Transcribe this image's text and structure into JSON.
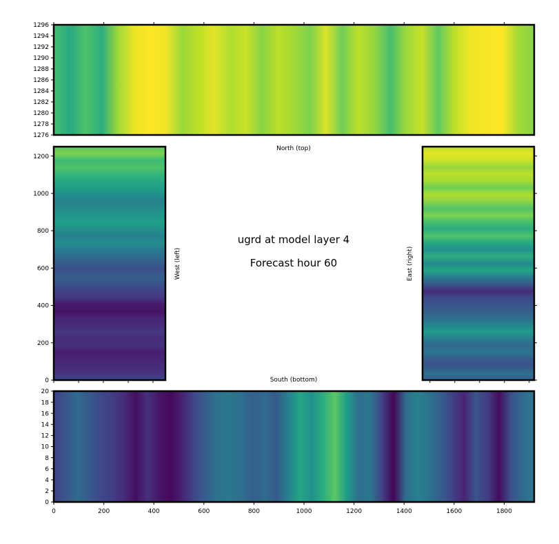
{
  "chart_data": [
    {
      "type": "heatmap",
      "panel": "north",
      "label": "North (top)",
      "x_ticks": [
        0,
        200,
        400,
        600,
        800,
        1000,
        1200,
        1400,
        1600,
        1800
      ],
      "x_tick_labels": [
        "",
        "",
        "",
        "",
        "",
        "",
        "",
        "",
        "",
        ""
      ],
      "xlim": [
        0,
        1920
      ],
      "y_ticks": [
        1276,
        1278,
        1280,
        1282,
        1284,
        1286,
        1288,
        1290,
        1292,
        1294,
        1296
      ],
      "y_tick_labels": [
        "1276",
        "1278",
        "1280",
        "1282",
        "1284",
        "1286",
        "1288",
        "1290",
        "1292",
        "1294",
        "1296"
      ],
      "ylim": [
        1276,
        1296
      ],
      "columns": [
        0.7,
        0.6,
        0.72,
        0.62,
        0.85,
        0.97,
        1.0,
        0.98,
        0.85,
        0.9,
        0.96,
        0.88,
        0.92,
        0.82,
        0.9,
        0.86,
        0.8,
        0.95,
        0.78,
        0.9,
        0.84,
        0.7,
        0.85,
        0.92,
        0.75,
        0.9,
        0.98,
        0.99,
        1.0,
        0.86,
        0.82
      ],
      "colormap": "viridis"
    },
    {
      "type": "heatmap",
      "panel": "west",
      "label": "West (left)",
      "x_ticks": [
        0,
        100,
        200,
        300,
        400
      ],
      "x_tick_labels": [
        "",
        "",
        "",
        "",
        ""
      ],
      "xlim": [
        0,
        450
      ],
      "y_ticks": [
        0,
        200,
        400,
        600,
        800,
        1000,
        1200
      ],
      "y_tick_labels": [
        "0",
        "200",
        "400",
        "600",
        "800",
        "1000",
        "1200"
      ],
      "ylim": [
        0,
        1250
      ],
      "rows": [
        0.22,
        0.14,
        0.12,
        0.1,
        0.08,
        0.14,
        0.12,
        0.16,
        0.12,
        0.1,
        0.05,
        0.07,
        0.16,
        0.2,
        0.26,
        0.3,
        0.24,
        0.28,
        0.36,
        0.42,
        0.48,
        0.44,
        0.5,
        0.56,
        0.52,
        0.48,
        0.44,
        0.5,
        0.56,
        0.6,
        0.66,
        0.72,
        0.68,
        0.8,
        0.74
      ],
      "colormap": "viridis"
    },
    {
      "type": "heatmap",
      "panel": "east",
      "label": "East (right)",
      "x_ticks": [
        1500,
        1600,
        1700,
        1800,
        1900
      ],
      "x_tick_labels": [
        "",
        "",
        "",
        "",
        ""
      ],
      "xlim": [
        1470,
        1920
      ],
      "y_ticks": [
        0,
        200,
        400,
        600,
        800,
        1000,
        1200
      ],
      "y_tick_labels": [
        "",
        "",
        "",
        "",
        "",
        "",
        ""
      ],
      "ylim": [
        0,
        1250
      ],
      "rows": [
        0.3,
        0.36,
        0.26,
        0.28,
        0.38,
        0.34,
        0.42,
        0.54,
        0.46,
        0.36,
        0.3,
        0.26,
        0.22,
        0.12,
        0.28,
        0.42,
        0.58,
        0.48,
        0.62,
        0.5,
        0.6,
        0.72,
        0.62,
        0.7,
        0.8,
        0.72,
        0.82,
        0.88,
        0.78,
        0.86,
        0.9,
        0.84,
        0.92,
        0.96,
        0.9
      ],
      "colormap": "viridis"
    },
    {
      "type": "heatmap",
      "panel": "south",
      "label": "South (bottom)",
      "x_ticks": [
        0,
        200,
        400,
        600,
        800,
        1000,
        1200,
        1400,
        1600,
        1800
      ],
      "x_tick_labels": [
        "0",
        "200",
        "400",
        "600",
        "800",
        "1000",
        "1200",
        "1400",
        "1600",
        "1800"
      ],
      "xlim": [
        0,
        1920
      ],
      "y_ticks": [
        0,
        2,
        4,
        6,
        8,
        10,
        12,
        14,
        16,
        18,
        20
      ],
      "y_tick_labels": [
        "0",
        "2",
        "4",
        "6",
        "8",
        "10",
        "12",
        "14",
        "16",
        "18",
        "20"
      ],
      "ylim": [
        0,
        20
      ],
      "columns": [
        0.2,
        0.26,
        0.34,
        0.28,
        0.22,
        0.18,
        0.12,
        0.04,
        0.14,
        0.06,
        0.02,
        0.1,
        0.22,
        0.3,
        0.38,
        0.4,
        0.36,
        0.3,
        0.34,
        0.28,
        0.44,
        0.58,
        0.5,
        0.62,
        0.74,
        0.55,
        0.36,
        0.4,
        0.2,
        0.01,
        0.34,
        0.44,
        0.38,
        0.3,
        0.2,
        0.1,
        0.26,
        0.18,
        0.03,
        0.24,
        0.34,
        0.4
      ],
      "colormap": "viridis"
    }
  ],
  "title_line1": "ugrd at model layer 4",
  "title_line2": "Forecast hour 60"
}
